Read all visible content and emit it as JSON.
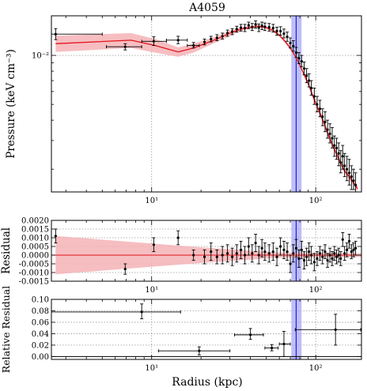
{
  "title": "A4059",
  "xlabel": "Radius (kpc)",
  "colors": {
    "model_line": "#e0141b",
    "model_band": "#f4b3b6",
    "marker_line": "#2a1fd6",
    "marker_band": "#a8a8f4",
    "data": "#000000",
    "grid": "#9a9a9a"
  },
  "marker": {
    "radius": 76,
    "band": [
      71,
      82
    ]
  },
  "chart_data": [
    {
      "type": "scatter",
      "id": "pressure",
      "ylabel": "Pressure (keV cm⁻³)",
      "xscale": "log",
      "yscale": "log",
      "xlim": [
        2.45,
        190
      ],
      "ylim": [
        0.00145,
        0.0175
      ],
      "xticks": [
        {
          "v": 10,
          "label": "10¹"
        },
        {
          "v": 100,
          "label": "10²"
        }
      ],
      "yticks": [
        {
          "v": 0.01,
          "label": "10⁻²"
        }
      ],
      "grid": true,
      "model": {
        "x": [
          2.6,
          7.5,
          10.5,
          14.5,
          18,
          25,
          30,
          35,
          40,
          45,
          50,
          55,
          60,
          65,
          70,
          75,
          80,
          85,
          90,
          95,
          100,
          110,
          120,
          130,
          140,
          150,
          160,
          170,
          180
        ],
        "y": [
          0.0118,
          0.0124,
          0.0115,
          0.0105,
          0.0111,
          0.0126,
          0.0137,
          0.0145,
          0.0149,
          0.0151,
          0.0148,
          0.0142,
          0.0133,
          0.0122,
          0.0111,
          0.0099,
          0.0087,
          0.0076,
          0.0067,
          0.0058,
          0.0051,
          0.00405,
          0.0032,
          0.00265,
          0.00225,
          0.00195,
          0.0018,
          0.00165,
          0.00152
        ],
        "lo": [
          0.0105,
          0.0111,
          0.0104,
          0.0098,
          0.0104,
          0.0121,
          0.0132,
          0.0141,
          0.0146,
          0.0148,
          0.0145,
          0.0139,
          0.013,
          0.0119,
          0.0108,
          0.0097,
          0.0085,
          0.0074,
          0.0065,
          0.0056,
          0.0049,
          0.0039,
          0.0031,
          0.00255,
          0.00217,
          0.00188,
          0.00173,
          0.00159,
          0.00146
        ],
        "hi": [
          0.0132,
          0.0137,
          0.0126,
          0.0112,
          0.0118,
          0.0131,
          0.0142,
          0.0149,
          0.0152,
          0.0154,
          0.0151,
          0.0145,
          0.0136,
          0.0125,
          0.0114,
          0.0101,
          0.0089,
          0.0078,
          0.0069,
          0.006,
          0.0053,
          0.0042,
          0.0033,
          0.00275,
          0.00233,
          0.00202,
          0.00187,
          0.00171,
          0.00158
        ]
      },
      "points": [
        {
          "x": 2.6,
          "y": 0.0135,
          "xlo": 2.45,
          "xhi": 5.0,
          "ylo": 0.0125,
          "yhi": 0.0146
        },
        {
          "x": 6.9,
          "y": 0.0113,
          "xlo": 5.3,
          "xhi": 8.7,
          "ylo": 0.0108,
          "yhi": 0.0118
        },
        {
          "x": 10.3,
          "y": 0.0122,
          "xlo": 8.7,
          "xhi": 12.3,
          "ylo": 0.0115,
          "yhi": 0.013
        },
        {
          "x": 14.5,
          "y": 0.0124,
          "xlo": 12.3,
          "xhi": 16.5,
          "ylo": 0.0118,
          "yhi": 0.0131
        },
        {
          "x": 18,
          "y": 0.0115,
          "xlo": 16.5,
          "xhi": 19.5,
          "ylo": 0.0111,
          "yhi": 0.012
        },
        {
          "x": 21,
          "y": 0.0121,
          "ylo": 0.0116,
          "yhi": 0.0126
        },
        {
          "x": 23,
          "y": 0.0126,
          "ylo": 0.0121,
          "yhi": 0.0131
        },
        {
          "x": 25,
          "y": 0.0128,
          "ylo": 0.0123,
          "yhi": 0.0134
        },
        {
          "x": 27,
          "y": 0.0131,
          "ylo": 0.0126,
          "yhi": 0.0137
        },
        {
          "x": 29,
          "y": 0.0137,
          "ylo": 0.0131,
          "yhi": 0.0143
        },
        {
          "x": 31,
          "y": 0.014,
          "ylo": 0.0134,
          "yhi": 0.0146
        },
        {
          "x": 33,
          "y": 0.0145,
          "ylo": 0.0139,
          "yhi": 0.0151
        },
        {
          "x": 35,
          "y": 0.0148,
          "ylo": 0.0141,
          "yhi": 0.0155
        },
        {
          "x": 37,
          "y": 0.0147,
          "ylo": 0.014,
          "yhi": 0.0155
        },
        {
          "x": 39,
          "y": 0.0153,
          "ylo": 0.0146,
          "yhi": 0.016
        },
        {
          "x": 41,
          "y": 0.0149,
          "ylo": 0.0142,
          "yhi": 0.0157
        },
        {
          "x": 43,
          "y": 0.0155,
          "ylo": 0.0147,
          "yhi": 0.0163
        },
        {
          "x": 45,
          "y": 0.0148,
          "ylo": 0.014,
          "yhi": 0.0156
        },
        {
          "x": 47,
          "y": 0.0152,
          "ylo": 0.0144,
          "yhi": 0.016
        },
        {
          "x": 49,
          "y": 0.015,
          "ylo": 0.0142,
          "yhi": 0.0158
        },
        {
          "x": 52,
          "y": 0.0149,
          "ylo": 0.0141,
          "yhi": 0.0157
        },
        {
          "x": 55,
          "y": 0.0147,
          "ylo": 0.0139,
          "yhi": 0.0155
        },
        {
          "x": 58,
          "y": 0.0141,
          "ylo": 0.0133,
          "yhi": 0.0149
        },
        {
          "x": 61,
          "y": 0.0141,
          "ylo": 0.0133,
          "yhi": 0.015
        },
        {
          "x": 64,
          "y": 0.0136,
          "ylo": 0.0128,
          "yhi": 0.0145
        },
        {
          "x": 67,
          "y": 0.013,
          "ylo": 0.0122,
          "yhi": 0.0139
        },
        {
          "x": 70,
          "y": 0.0119,
          "ylo": 0.0111,
          "yhi": 0.0128
        },
        {
          "x": 73,
          "y": 0.0114,
          "ylo": 0.0106,
          "yhi": 0.0123
        },
        {
          "x": 76,
          "y": 0.0104,
          "ylo": 0.0097,
          "yhi": 0.0112
        },
        {
          "x": 79,
          "y": 0.0096,
          "ylo": 0.0089,
          "yhi": 0.0104
        },
        {
          "x": 82,
          "y": 0.0092,
          "ylo": 0.0085,
          "yhi": 0.01
        },
        {
          "x": 85,
          "y": 0.0083,
          "ylo": 0.0076,
          "yhi": 0.0091
        },
        {
          "x": 88,
          "y": 0.0075,
          "ylo": 0.0068,
          "yhi": 0.0083
        },
        {
          "x": 91,
          "y": 0.007,
          "ylo": 0.0064,
          "yhi": 0.0077
        },
        {
          "x": 94,
          "y": 0.0063,
          "ylo": 0.0057,
          "yhi": 0.007
        },
        {
          "x": 98,
          "y": 0.0056,
          "ylo": 0.005,
          "yhi": 0.0063
        },
        {
          "x": 102,
          "y": 0.005,
          "ylo": 0.0045,
          "yhi": 0.0056
        },
        {
          "x": 106,
          "y": 0.0047,
          "ylo": 0.0042,
          "yhi": 0.0053
        },
        {
          "x": 110,
          "y": 0.0042,
          "ylo": 0.0037,
          "yhi": 0.0047
        },
        {
          "x": 114,
          "y": 0.0039,
          "ylo": 0.0034,
          "yhi": 0.0045
        },
        {
          "x": 118,
          "y": 0.0035,
          "ylo": 0.0031,
          "yhi": 0.004
        },
        {
          "x": 122,
          "y": 0.0033,
          "ylo": 0.0029,
          "yhi": 0.0038
        },
        {
          "x": 126,
          "y": 0.0031,
          "ylo": 0.0027,
          "yhi": 0.0036
        },
        {
          "x": 130,
          "y": 0.0028,
          "ylo": 0.0024,
          "yhi": 0.0032
        },
        {
          "x": 134,
          "y": 0.0027,
          "ylo": 0.0023,
          "yhi": 0.0031
        },
        {
          "x": 138,
          "y": 0.0025,
          "ylo": 0.0021,
          "yhi": 0.0029
        },
        {
          "x": 142,
          "y": 0.0022,
          "ylo": 0.0019,
          "yhi": 0.0026
        },
        {
          "x": 146,
          "y": 0.0024,
          "ylo": 0.002,
          "yhi": 0.0028
        },
        {
          "x": 150,
          "y": 0.0021,
          "ylo": 0.0018,
          "yhi": 0.0025
        },
        {
          "x": 155,
          "y": 0.002,
          "ylo": 0.0017,
          "yhi": 0.0024
        },
        {
          "x": 160,
          "y": 0.0019,
          "ylo": 0.0016,
          "yhi": 0.0023
        },
        {
          "x": 165,
          "y": 0.0018,
          "ylo": 0.0015,
          "yhi": 0.0021
        },
        {
          "x": 170,
          "y": 0.0017,
          "ylo": 0.0015,
          "yhi": 0.002
        },
        {
          "x": 175,
          "y": 0.0016,
          "ylo": 0.0014,
          "yhi": 0.0019
        }
      ]
    },
    {
      "type": "scatter",
      "id": "residual",
      "ylabel": "Residual",
      "xscale": "log",
      "yscale": "linear",
      "xlim": [
        2.45,
        190
      ],
      "ylim": [
        -0.0015,
        0.002
      ],
      "xticks": [
        {
          "v": 10,
          "label": "10¹"
        },
        {
          "v": 100,
          "label": "10²"
        }
      ],
      "yticks": [
        {
          "v": -0.0015,
          "label": "-0.0015"
        },
        {
          "v": -0.001,
          "label": "-0.0010"
        },
        {
          "v": -0.0005,
          "label": "-0.0005"
        },
        {
          "v": 0,
          "label": "0.0000"
        },
        {
          "v": 0.0005,
          "label": "0.0005"
        },
        {
          "v": 0.001,
          "label": "0.0010"
        },
        {
          "v": 0.0015,
          "label": "0.0015"
        },
        {
          "v": 0.002,
          "label": "0.0020"
        }
      ],
      "grid": true,
      "band": {
        "x": [
          2.6,
          20,
          60,
          190
        ],
        "lo": [
          -0.0011,
          -0.00045,
          -0.00015,
          -0.0001
        ],
        "hi": [
          0.0011,
          0.00045,
          0.00015,
          0.0001
        ]
      },
      "points": [
        {
          "x": 2.6,
          "y": 0.0011,
          "ylo": 0.0007,
          "yhi": 0.0015
        },
        {
          "x": 6.9,
          "y": -0.0008,
          "ylo": -0.0011,
          "yhi": -0.0005
        },
        {
          "x": 10.3,
          "y": 0.0006,
          "ylo": 0.0002,
          "yhi": 0.001
        },
        {
          "x": 14.5,
          "y": 0.001,
          "ylo": 0.0006,
          "yhi": 0.0014
        },
        {
          "x": 18,
          "y": 0.0,
          "ylo": -0.0003,
          "yhi": 0.0003
        },
        {
          "x": 21,
          "y": -0.0001,
          "ylo": -0.0005,
          "yhi": 0.0003
        },
        {
          "x": 23,
          "y": 0.0002,
          "ylo": -0.0003,
          "yhi": 0.0007
        },
        {
          "x": 25,
          "y": -0.0001,
          "ylo": -0.0005,
          "yhi": 0.0003
        },
        {
          "x": 27,
          "y": 0.0,
          "ylo": -0.0005,
          "yhi": 0.0005
        },
        {
          "x": 29,
          "y": 0.0001,
          "ylo": -0.0004,
          "yhi": 0.0006
        },
        {
          "x": 31,
          "y": -0.0001,
          "ylo": -0.0006,
          "yhi": 0.0004
        },
        {
          "x": 33,
          "y": 0.0001,
          "ylo": -0.0004,
          "yhi": 0.0006
        },
        {
          "x": 35,
          "y": 0.0003,
          "ylo": -0.0002,
          "yhi": 0.0008
        },
        {
          "x": 37,
          "y": 0.0,
          "ylo": -0.0005,
          "yhi": 0.0005
        },
        {
          "x": 39,
          "y": 0.0005,
          "ylo": 0.0,
          "yhi": 0.001
        },
        {
          "x": 41,
          "y": 0.0001,
          "ylo": -0.0004,
          "yhi": 0.0006
        },
        {
          "x": 43,
          "y": 0.0007,
          "ylo": 0.0002,
          "yhi": 0.0012
        },
        {
          "x": 45,
          "y": 0.0,
          "ylo": -0.0005,
          "yhi": 0.0005
        },
        {
          "x": 47,
          "y": 0.0004,
          "ylo": -0.0001,
          "yhi": 0.0009
        },
        {
          "x": 49,
          "y": 0.0002,
          "ylo": -0.0003,
          "yhi": 0.0007
        },
        {
          "x": 52,
          "y": 0.0001,
          "ylo": -0.0004,
          "yhi": 0.0006
        },
        {
          "x": 55,
          "y": 0.0002,
          "ylo": -0.0003,
          "yhi": 0.0007
        },
        {
          "x": 58,
          "y": -0.0001,
          "ylo": -0.0006,
          "yhi": 0.0004
        },
        {
          "x": 61,
          "y": 0.0005,
          "ylo": 0.0,
          "yhi": 0.001
        },
        {
          "x": 64,
          "y": 0.0003,
          "ylo": -0.0002,
          "yhi": 0.0008
        },
        {
          "x": 67,
          "y": 0.0002,
          "ylo": -0.0003,
          "yhi": 0.0007
        },
        {
          "x": 70,
          "y": -0.0005,
          "ylo": -0.001,
          "yhi": 0.0
        },
        {
          "x": 73,
          "y": 0.0001,
          "ylo": -0.0004,
          "yhi": 0.0006
        },
        {
          "x": 76,
          "y": 0.0004,
          "ylo": -0.0001,
          "yhi": 0.0009
        },
        {
          "x": 79,
          "y": -0.0002,
          "ylo": -0.0007,
          "yhi": 0.0003
        },
        {
          "x": 82,
          "y": 0.0003,
          "ylo": -0.0002,
          "yhi": 0.0008
        },
        {
          "x": 85,
          "y": -0.0003,
          "ylo": -0.0008,
          "yhi": 0.0002
        },
        {
          "x": 88,
          "y": -0.0001,
          "ylo": -0.0006,
          "yhi": 0.0004
        },
        {
          "x": 91,
          "y": 0.0002,
          "ylo": -0.0003,
          "yhi": 0.0007
        },
        {
          "x": 94,
          "y": 0.0,
          "ylo": -0.0005,
          "yhi": 0.0005
        },
        {
          "x": 98,
          "y": -0.0004,
          "ylo": -0.0009,
          "yhi": 0.0001
        },
        {
          "x": 102,
          "y": -0.0002,
          "ylo": -0.0006,
          "yhi": 0.0002
        },
        {
          "x": 106,
          "y": 0.0001,
          "ylo": -0.0003,
          "yhi": 0.0005
        },
        {
          "x": 110,
          "y": -0.0001,
          "ylo": -0.0005,
          "yhi": 0.0003
        },
        {
          "x": 114,
          "y": 0.0002,
          "ylo": -0.0002,
          "yhi": 0.0006
        },
        {
          "x": 118,
          "y": -0.0003,
          "ylo": -0.0007,
          "yhi": 0.0001
        },
        {
          "x": 122,
          "y": 0.0,
          "ylo": -0.0004,
          "yhi": 0.0004
        },
        {
          "x": 126,
          "y": -0.0002,
          "ylo": -0.0006,
          "yhi": 0.0002
        },
        {
          "x": 130,
          "y": 0.0001,
          "ylo": -0.0003,
          "yhi": 0.0005
        },
        {
          "x": 134,
          "y": -0.0001,
          "ylo": -0.0005,
          "yhi": 0.0003
        },
        {
          "x": 138,
          "y": 0.0,
          "ylo": -0.0004,
          "yhi": 0.0004
        },
        {
          "x": 142,
          "y": -0.0002,
          "ylo": -0.0006,
          "yhi": 0.0002
        },
        {
          "x": 146,
          "y": 0.0009,
          "ylo": 0.0005,
          "yhi": 0.0013
        },
        {
          "x": 150,
          "y": 0.0001,
          "ylo": -0.0003,
          "yhi": 0.0005
        },
        {
          "x": 155,
          "y": 0.0003,
          "ylo": -0.0001,
          "yhi": 0.0007
        },
        {
          "x": 160,
          "y": 0.0008,
          "ylo": 0.0004,
          "yhi": 0.0012
        },
        {
          "x": 165,
          "y": 0.0002,
          "ylo": -0.0002,
          "yhi": 0.0006
        },
        {
          "x": 170,
          "y": 0.0003,
          "ylo": -0.0001,
          "yhi": 0.0007
        },
        {
          "x": 175,
          "y": 0.0004,
          "ylo": 0.0,
          "yhi": 0.0008
        }
      ]
    },
    {
      "type": "scatter",
      "id": "relative-residual",
      "ylabel": "Relative Residual",
      "xscale": "log",
      "yscale": "linear",
      "xlim": [
        2.45,
        190
      ],
      "ylim": [
        -0.005,
        0.1
      ],
      "xticks": [
        {
          "v": 10,
          "label": "10¹"
        },
        {
          "v": 100,
          "label": "10²"
        }
      ],
      "yticks": [
        {
          "v": 0,
          "label": "0.00"
        },
        {
          "v": 0.02,
          "label": "0.02"
        },
        {
          "v": 0.04,
          "label": "0.04"
        },
        {
          "v": 0.06,
          "label": "0.06"
        },
        {
          "v": 0.08,
          "label": "0.08"
        },
        {
          "v": 0.1,
          "label": "0.10"
        }
      ],
      "grid": true,
      "points": [
        {
          "x": 8.7,
          "y": 0.078,
          "xlo": 2.45,
          "xhi": 15.0,
          "ylo": 0.066,
          "yhi": 0.092
        },
        {
          "x": 19.5,
          "y": 0.01,
          "xlo": 11.0,
          "xhi": 30.0,
          "ylo": 0.003,
          "yhi": 0.017
        },
        {
          "x": 40,
          "y": 0.038,
          "xlo": 32.0,
          "xhi": 48.0,
          "ylo": 0.03,
          "yhi": 0.049
        },
        {
          "x": 54,
          "y": 0.015,
          "xlo": 49.0,
          "xhi": 59.0,
          "ylo": 0.01,
          "yhi": 0.021
        },
        {
          "x": 64,
          "y": 0.022,
          "xlo": 60.0,
          "xhi": 70.0,
          "ylo": 0.0,
          "yhi": 0.044
        },
        {
          "x": 132,
          "y": 0.047,
          "xlo": 75.0,
          "xhi": 188.0,
          "ylo": 0.02,
          "yhi": 0.074
        }
      ]
    }
  ]
}
